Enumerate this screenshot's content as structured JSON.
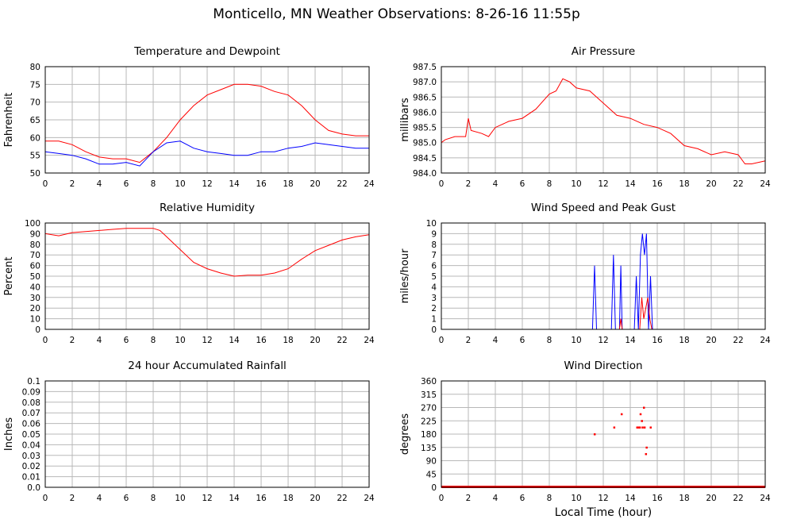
{
  "page": {
    "title": "Monticello, MN Weather Observations: 8-26-16 11:55p",
    "xaxis_title": "Local Time (hour)"
  },
  "colors": {
    "red": "#ff0000",
    "blue": "#0000ff",
    "grid": "#b8b8b8",
    "frame": "#000000"
  },
  "chart_data": [
    {
      "id": "temp",
      "type": "line",
      "title": "Temperature and Dewpoint",
      "ylabel": "Fahrenheit",
      "xlim": [
        0,
        24
      ],
      "ylim": [
        50,
        80
      ],
      "xticks": [
        0,
        2,
        4,
        6,
        8,
        10,
        12,
        14,
        16,
        18,
        20,
        22,
        24
      ],
      "yticks": [
        50,
        55,
        60,
        65,
        70,
        75,
        80
      ],
      "ytick_labels": [
        "50",
        "55",
        "60",
        "65",
        "70",
        "75",
        "80"
      ],
      "series": [
        {
          "color": "#ff0000",
          "x": [
            0,
            1,
            2,
            3,
            4,
            5,
            6,
            7,
            8,
            9,
            10,
            11,
            12,
            13,
            14,
            15,
            16,
            17,
            18,
            19,
            20,
            21,
            22,
            23,
            24
          ],
          "y": [
            59,
            59,
            58,
            56,
            54.5,
            54,
            54,
            53,
            56,
            60,
            65,
            69,
            72,
            73.5,
            75,
            75,
            74.5,
            73,
            72,
            69,
            65,
            62,
            61,
            60.5,
            60.5
          ]
        },
        {
          "color": "#0000ff",
          "x": [
            0,
            1,
            2,
            3,
            4,
            5,
            6,
            7,
            8,
            9,
            10,
            11,
            12,
            13,
            14,
            15,
            16,
            17,
            18,
            19,
            20,
            21,
            22,
            23,
            24
          ],
          "y": [
            56,
            55.5,
            55,
            54,
            52.5,
            52.5,
            53,
            52,
            56,
            58.5,
            59,
            57,
            56,
            55.5,
            55,
            55,
            56,
            56,
            57,
            57.5,
            58.5,
            58,
            57.5,
            57,
            57
          ]
        }
      ]
    },
    {
      "id": "press",
      "type": "line",
      "title": "Air Pressure",
      "ylabel": "millibars",
      "xlim": [
        0,
        24
      ],
      "ylim": [
        984.0,
        987.5
      ],
      "xticks": [
        0,
        2,
        4,
        6,
        8,
        10,
        12,
        14,
        16,
        18,
        20,
        22,
        24
      ],
      "yticks": [
        984.0,
        984.5,
        985.0,
        985.5,
        986.0,
        986.5,
        987.0,
        987.5
      ],
      "ytick_labels": [
        "984.0",
        "984.5",
        "985.0",
        "985.5",
        "986.0",
        "986.5",
        "987.0",
        "987.5"
      ],
      "series": [
        {
          "color": "#ff0000",
          "x": [
            0,
            0.3,
            1,
            1.8,
            2,
            2.2,
            3,
            3.5,
            4,
            5,
            6,
            7,
            8,
            8.5,
            9,
            9.5,
            10,
            11,
            12,
            13,
            14,
            15,
            16,
            17,
            18,
            19,
            20,
            21,
            22,
            22.5,
            23,
            24
          ],
          "y": [
            985,
            985.1,
            985.2,
            985.2,
            985.8,
            985.4,
            985.3,
            985.2,
            985.5,
            985.7,
            985.8,
            986.1,
            986.6,
            986.7,
            987.1,
            987,
            986.8,
            986.7,
            986.3,
            985.9,
            985.8,
            985.6,
            985.5,
            985.3,
            984.9,
            984.8,
            984.6,
            984.7,
            984.6,
            984.3,
            984.3,
            984.4
          ]
        }
      ]
    },
    {
      "id": "rh",
      "type": "line",
      "title": "Relative Humidity",
      "ylabel": "Percent",
      "xlim": [
        0,
        24
      ],
      "ylim": [
        0,
        100
      ],
      "xticks": [
        0,
        2,
        4,
        6,
        8,
        10,
        12,
        14,
        16,
        18,
        20,
        22,
        24
      ],
      "yticks": [
        0,
        10,
        20,
        30,
        40,
        50,
        60,
        70,
        80,
        90,
        100
      ],
      "ytick_labels": [
        "0",
        "10",
        "20",
        "30",
        "40",
        "50",
        "60",
        "70",
        "80",
        "90",
        "100"
      ],
      "series": [
        {
          "color": "#ff0000",
          "x": [
            0,
            1,
            2,
            3,
            4,
            5,
            6,
            7,
            8,
            8.5,
            9,
            10,
            11,
            12,
            13,
            14,
            15,
            16,
            17,
            18,
            19,
            20,
            21,
            22,
            23,
            24
          ],
          "y": [
            90,
            88,
            91,
            92,
            93,
            94,
            95,
            95,
            95,
            93,
            87,
            75,
            63,
            57,
            53,
            50,
            51,
            51,
            53,
            57,
            66,
            74,
            79,
            84,
            87,
            89
          ]
        }
      ]
    },
    {
      "id": "wind",
      "type": "line",
      "title": "Wind Speed and Peak Gust",
      "ylabel": "miles/hour",
      "xlim": [
        0,
        24
      ],
      "ylim": [
        0,
        10
      ],
      "xticks": [
        0,
        2,
        4,
        6,
        8,
        10,
        12,
        14,
        16,
        18,
        20,
        22,
        24
      ],
      "yticks": [
        0,
        1,
        2,
        3,
        4,
        5,
        6,
        7,
        8,
        9,
        10
      ],
      "ytick_labels": [
        "0",
        "1",
        "2",
        "3",
        "4",
        "5",
        "6",
        "7",
        "8",
        "9",
        "10"
      ],
      "series": [
        {
          "color": "#0000ff",
          "x": [
            0,
            11.2,
            11.35,
            11.5,
            12.6,
            12.75,
            12.9,
            13.2,
            13.3,
            13.4,
            14.3,
            14.45,
            14.6,
            14.75,
            14.9,
            15.05,
            15.2,
            15.35,
            15.5,
            15.65,
            24
          ],
          "y": [
            0,
            0,
            6,
            0,
            0,
            7,
            0,
            0,
            6,
            0,
            0,
            5,
            0,
            7,
            9,
            7,
            9,
            0,
            5,
            0,
            0
          ]
        },
        {
          "color": "#ff0000",
          "x": [
            0,
            13.2,
            13.3,
            13.4,
            14.7,
            14.85,
            15.0,
            15.3,
            15.45,
            15.6,
            24
          ],
          "y": [
            0,
            0,
            1,
            0,
            0,
            3,
            1,
            3,
            1,
            0,
            0
          ]
        }
      ]
    },
    {
      "id": "rain",
      "type": "line",
      "title": "24 hour Accumulated Rainfall",
      "ylabel": "Inches",
      "xlim": [
        0,
        24
      ],
      "ylim": [
        0,
        0.1
      ],
      "xticks": [
        0,
        2,
        4,
        6,
        8,
        10,
        12,
        14,
        16,
        18,
        20,
        22,
        24
      ],
      "yticks": [
        0,
        0.01,
        0.02,
        0.03,
        0.04,
        0.05,
        0.06,
        0.07,
        0.08,
        0.09,
        0.1
      ],
      "ytick_labels": [
        "0.0",
        "0.01",
        "0.02",
        "0.03",
        "0.04",
        "0.05",
        "0.06",
        "0.07",
        "0.08",
        "0.09",
        "0.1"
      ],
      "series": [
        {
          "color": "#ff0000",
          "x": [
            0,
            24
          ],
          "y": [
            0,
            0
          ]
        }
      ]
    },
    {
      "id": "dir",
      "type": "scatter",
      "title": "Wind Direction",
      "ylabel": "degrees",
      "xlim": [
        0,
        24
      ],
      "ylim": [
        0,
        360
      ],
      "xticks": [
        0,
        2,
        4,
        6,
        8,
        10,
        12,
        14,
        16,
        18,
        20,
        22,
        24
      ],
      "yticks": [
        0,
        45,
        90,
        135,
        180,
        225,
        270,
        315,
        360
      ],
      "ytick_labels": [
        "0",
        "45",
        "90",
        "135",
        "180",
        "225",
        "270",
        "315",
        "360"
      ],
      "baseline": 0,
      "series": [
        {
          "color": "#ff0000",
          "x": [
            11.35,
            12.8,
            13.35,
            14.5,
            14.6,
            14.7,
            14.75,
            14.85,
            14.9,
            15.0,
            15.05,
            15.15,
            15.2,
            15.5
          ],
          "y": [
            180,
            203,
            248,
            203,
            203,
            203,
            248,
            225,
            203,
            270,
            203,
            113,
            135,
            203
          ]
        }
      ]
    }
  ]
}
